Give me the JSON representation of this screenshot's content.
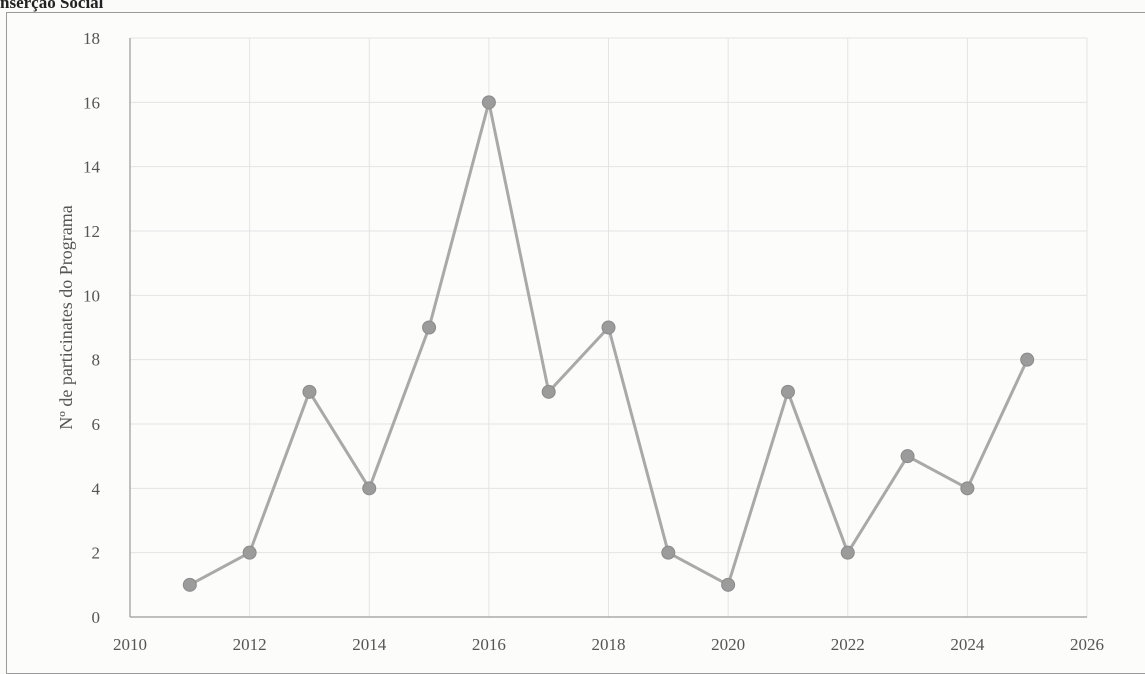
{
  "heading": "nserção Social",
  "chart_data": {
    "type": "line",
    "title": "",
    "xlabel": "",
    "ylabel": "Nº de particinates do Programa",
    "xlim": [
      2010,
      2026
    ],
    "ylim": [
      0,
      18
    ],
    "xticks": [
      2010,
      2012,
      2014,
      2016,
      2018,
      2020,
      2022,
      2024,
      2026
    ],
    "yticks": [
      0,
      2,
      4,
      6,
      8,
      10,
      12,
      14,
      16,
      18
    ],
    "grid": true,
    "series": [
      {
        "x": [
          2011,
          2012,
          2013,
          2014,
          2015,
          2016,
          2017,
          2018,
          2019,
          2020,
          2021,
          2022,
          2023,
          2024,
          2025
        ],
        "y": [
          1,
          2,
          7,
          4,
          9,
          16,
          7,
          9,
          2,
          1,
          7,
          2,
          5,
          4,
          8
        ]
      }
    ],
    "colors": {
      "line": "#a9a9a9",
      "marker": "#9b9b9b",
      "grid": "#e4e4e4",
      "axis": "#9a9a9a"
    }
  }
}
